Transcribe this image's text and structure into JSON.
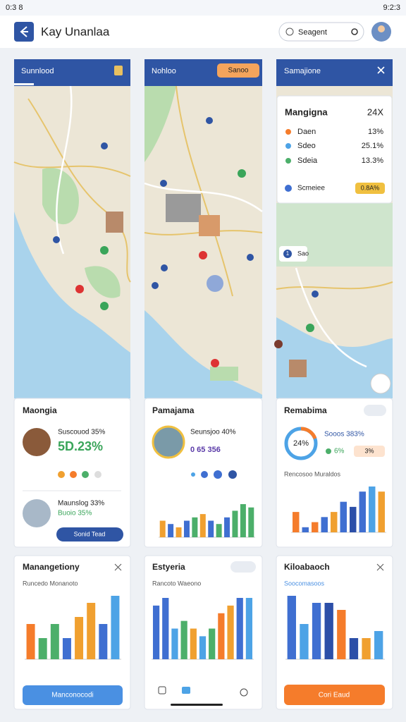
{
  "status": {
    "time": "0:3 8",
    "clock": "9:2:3"
  },
  "header": {
    "title": "Kay Unanlaa",
    "search": "Seagent"
  },
  "panels": [
    {
      "title": "Sunnlood"
    },
    {
      "title": "Nohloo",
      "badge": "Sanoo"
    },
    {
      "title": "Samajione"
    }
  ],
  "overlay": {
    "title": "Mangigna",
    "value": "24X",
    "rows": [
      {
        "label": "Daen",
        "value": "13%"
      },
      {
        "label": "Sdeo",
        "value": "25.1%"
      },
      {
        "label": "Sdeia",
        "value": "13.3%"
      }
    ],
    "footer": "Scmeiee",
    "badge": "0.8A%",
    "count": "1",
    "pin": "Sao"
  },
  "cards": [
    {
      "title": "Maongia",
      "line1": "Suscouod 35%",
      "big": "5D.23%",
      "line2": "Maunslog 33%",
      "line3": "Buoio 35%",
      "button": "Sonid Tead"
    },
    {
      "title": "Pamajama",
      "line1": "Seunsjoo 40%",
      "line2": "0 65 356",
      "values": [
        5,
        4,
        3,
        5,
        6,
        7,
        5,
        4,
        6,
        8,
        10,
        9
      ],
      "colors": [
        "#f0a030",
        "#3f6fd1",
        "#f0a030",
        "#3f6fd1",
        "#4caf6a",
        "#f0a030",
        "#3f6fd1",
        "#4caf6a",
        "#3f6fd1",
        "#4caf6a",
        "#4caf6a",
        "#4caf6a"
      ]
    },
    {
      "title": "Remabima",
      "ring": "24%",
      "line1": "Sooos 383%",
      "line2": "6%",
      "badge": "3%",
      "subtitle": "Rencosoo Muraldos",
      "values": [
        4,
        1,
        2,
        3,
        4,
        6,
        5,
        8,
        9,
        8
      ],
      "colors": [
        "#f57c2b",
        "#3f6fd1",
        "#f57c2b",
        "#3f6fd1",
        "#f0a030",
        "#3f6fd1",
        "#2c4fa8",
        "#3f6fd1",
        "#4da3e6",
        "#f0a030"
      ]
    }
  ],
  "bottom": [
    {
      "title": "Manangetiony",
      "subtitle": "Runcedo Monanoto",
      "button": "Manconocodi",
      "values": [
        5,
        3,
        5,
        3,
        6,
        8,
        5,
        9
      ],
      "colors": [
        "#f57c2b",
        "#4caf6a",
        "#4caf6a",
        "#3f6fd1",
        "#f0a030",
        "#f0a030",
        "#3f6fd1",
        "#4da3e6"
      ]
    },
    {
      "title": "Estyeria",
      "subtitle": "Rancoto Waeono",
      "values": [
        7,
        8,
        4,
        5,
        4,
        3,
        4,
        6,
        7,
        8,
        8
      ],
      "colors": [
        "#3f6fd1",
        "#3f6fd1",
        "#4da3e6",
        "#4caf6a",
        "#f0a030",
        "#4da3e6",
        "#4caf6a",
        "#f57c2b",
        "#f0a030",
        "#3f6fd1",
        "#4da3e6"
      ]
    },
    {
      "title": "Kiloabaoch",
      "subtitle": "Soocomasoos",
      "button": "Cori Eaud",
      "values": [
        9,
        5,
        8,
        8,
        7,
        3,
        3,
        4
      ],
      "colors": [
        "#3f6fd1",
        "#4da3e6",
        "#3f6fd1",
        "#2c4fa8",
        "#f57c2b",
        "#2c4fa8",
        "#f0a030",
        "#4da3e6"
      ]
    }
  ]
}
